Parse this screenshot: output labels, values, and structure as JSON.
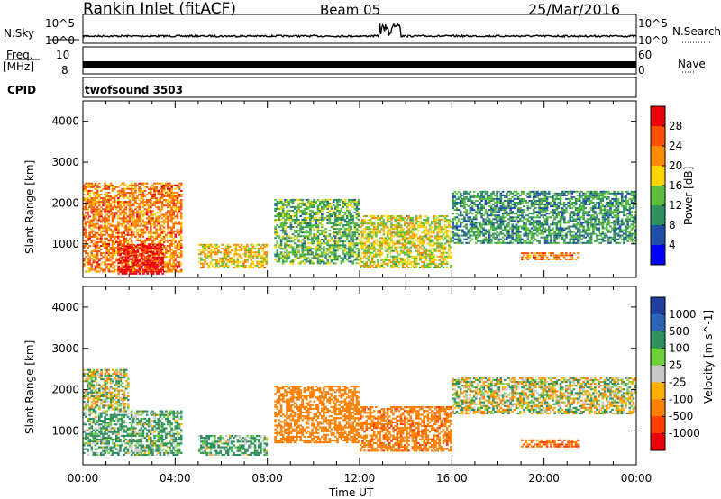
{
  "header": {
    "station": "Rankin Inlet (fitACF)",
    "beam": "Beam 05",
    "date": "25/Mar/2016"
  },
  "noise_panel": {
    "left_label": "N.Sky",
    "right_label": "N.Search",
    "ticks_left": [
      "10^5",
      "10^0"
    ],
    "ticks_right": [
      "10^5",
      "10^0"
    ]
  },
  "freq_panel": {
    "left_label": "Freq.",
    "unit": "[MHz]",
    "right_label": "Nave",
    "ticks_left": [
      "10",
      "8"
    ],
    "ticks_right": [
      "60",
      "0"
    ]
  },
  "cpid": {
    "label": "CPID",
    "value": "twofsound 3503"
  },
  "power_colorbar": {
    "label": "Power [dB]",
    "ticks": [
      "28",
      "24",
      "20",
      "16",
      "12",
      "8",
      "4"
    ],
    "colors": [
      "#e8000b",
      "#ff4f00",
      "#ff8c00",
      "#ffd400",
      "#5bbf3c",
      "#2f8f5e",
      "#1e4ea8",
      "#0000ff"
    ]
  },
  "velocity_colorbar": {
    "label": "Velocity [m s^-1]",
    "ticks": [
      "1000",
      "500",
      "100",
      "25",
      "-25",
      "-100",
      "-500",
      "-1000"
    ],
    "colors": [
      "#1e3fa0",
      "#2c64b8",
      "#2f8f5e",
      "#6bd23a",
      "#c8c8c8",
      "#ffb000",
      "#ff8000",
      "#ff4000",
      "#e8000b"
    ]
  },
  "time_axis": {
    "label": "Time UT",
    "ticks": [
      "00:00",
      "04:00",
      "08:00",
      "12:00",
      "16:00",
      "20:00",
      "00:00"
    ]
  },
  "range_axis": {
    "label": "Slant Range [km]",
    "ticks": [
      "4000",
      "3000",
      "2000",
      "1000"
    ]
  },
  "chart_data": [
    {
      "type": "heatmap",
      "title": "Power",
      "xlabel": "Time UT",
      "ylabel": "Slant Range [km]",
      "xlim_hours": [
        0,
        24
      ],
      "ylim_km": [
        180,
        4500
      ],
      "cmap_label": "Power [dB]",
      "colorbar_range": [
        0,
        30
      ],
      "regions": [
        {
          "t0": 0.0,
          "t1": 4.3,
          "r0": 300,
          "r1": 2500,
          "level": 22
        },
        {
          "t0": 1.5,
          "t1": 3.5,
          "r0": 250,
          "r1": 1000,
          "level": 28
        },
        {
          "t0": 5.0,
          "t1": 8.0,
          "r0": 400,
          "r1": 1000,
          "level": 18
        },
        {
          "t0": 8.3,
          "t1": 12.0,
          "r0": 500,
          "r1": 2100,
          "level": 12
        },
        {
          "t0": 12.0,
          "t1": 16.0,
          "r0": 400,
          "r1": 1700,
          "level": 16
        },
        {
          "t0": 16.0,
          "t1": 24.0,
          "r0": 1000,
          "r1": 2300,
          "level": 10
        },
        {
          "t0": 19.0,
          "t1": 21.5,
          "r0": 600,
          "r1": 800,
          "level": 22
        }
      ]
    },
    {
      "type": "heatmap",
      "title": "Velocity",
      "xlabel": "Time UT",
      "ylabel": "Slant Range [km]",
      "xlim_hours": [
        0,
        24
      ],
      "ylim_km": [
        180,
        4500
      ],
      "cmap_label": "Velocity [m s^-1]",
      "colorbar_range": [
        -1000,
        1000
      ],
      "regions": [
        {
          "t0": 0.0,
          "t1": 2.0,
          "r0": 1500,
          "r1": 2500,
          "level": 0
        },
        {
          "t0": 0.0,
          "t1": 4.3,
          "r0": 400,
          "r1": 1500,
          "level": 100
        },
        {
          "t0": 5.0,
          "t1": 8.0,
          "r0": 400,
          "r1": 900,
          "level": 100
        },
        {
          "t0": 8.3,
          "t1": 12.0,
          "r0": 700,
          "r1": 2100,
          "level": -300
        },
        {
          "t0": 12.0,
          "t1": 16.0,
          "r0": 500,
          "r1": 1600,
          "level": -400
        },
        {
          "t0": 16.0,
          "t1": 24.0,
          "r0": 1400,
          "r1": 2300,
          "level": 0
        },
        {
          "t0": 19.0,
          "t1": 21.5,
          "r0": 600,
          "r1": 800,
          "level": -500
        }
      ]
    }
  ]
}
